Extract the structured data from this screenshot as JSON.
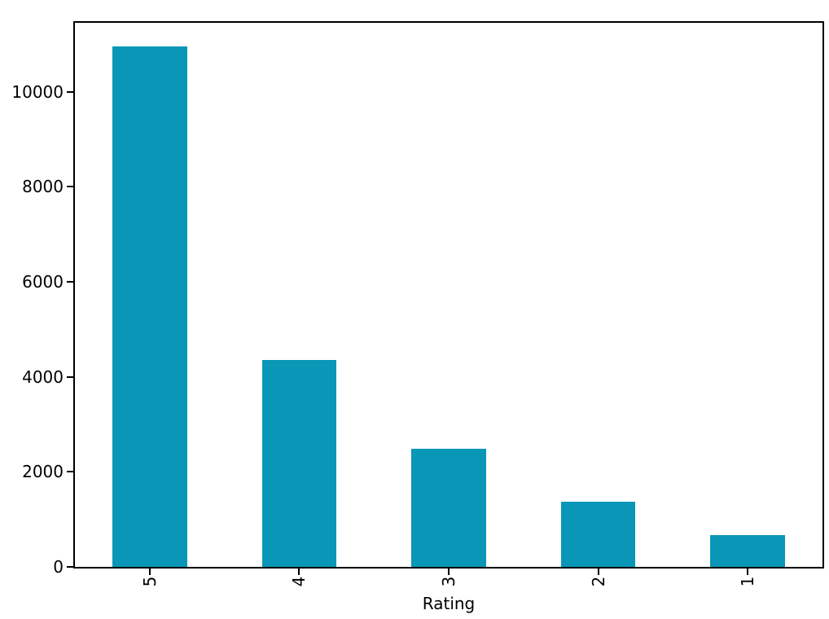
{
  "figure": {
    "background_color": "#ffffff",
    "spine_color": "#000000",
    "text_color": "#000000"
  },
  "chart_data": {
    "type": "bar",
    "title": "",
    "xlabel": "Rating",
    "ylabel": "",
    "categories": [
      "5",
      "4",
      "3",
      "2",
      "1"
    ],
    "values": [
      10950,
      4350,
      2480,
      1370,
      670
    ],
    "bar_color": "#0a96b6",
    "bar_width_fraction": 0.5,
    "yticks": [
      0,
      2000,
      4000,
      6000,
      8000,
      10000
    ],
    "ylim": [
      0,
      11450
    ],
    "grid": false,
    "legend": null,
    "xticklabel_rotation_deg": 90
  }
}
